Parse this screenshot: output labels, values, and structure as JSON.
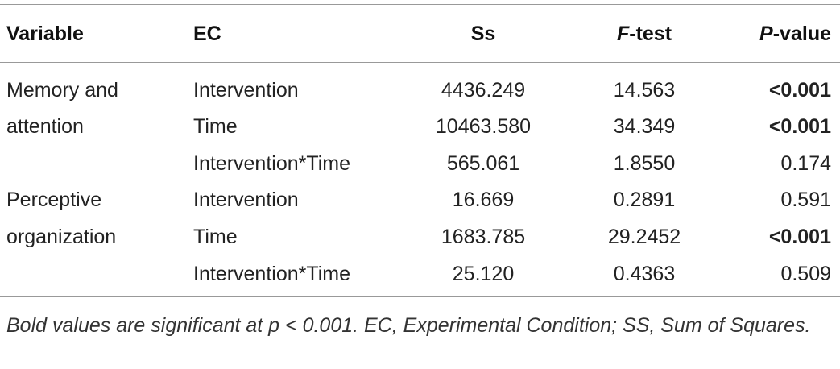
{
  "table": {
    "headers": [
      {
        "text": "Variable"
      },
      {
        "text": "EC"
      },
      {
        "text": "Ss"
      },
      {
        "italic": "F",
        "text": "-test"
      },
      {
        "italic": "P",
        "text": "-value"
      }
    ],
    "rows": [
      {
        "cells": [
          "Memory and",
          "Intervention",
          "4436.249",
          "14.563",
          "<0.001"
        ],
        "bold": true
      },
      {
        "cells": [
          "attention",
          "Time",
          "10463.580",
          "34.349",
          "<0.001"
        ],
        "bold": true
      },
      {
        "cells": [
          null,
          "Intervention*Time",
          "565.061",
          "1.8550",
          "0.174"
        ],
        "bold": false
      },
      {
        "cells": [
          "Perceptive",
          "Intervention",
          "16.669",
          "0.2891",
          "0.591"
        ],
        "bold": false
      },
      {
        "cells": [
          "organization",
          "Time",
          "1683.785",
          "29.2452",
          "<0.001"
        ],
        "bold": true
      },
      {
        "cells": [
          null,
          "Intervention*Time",
          "25.120",
          "0.4363",
          "0.509"
        ],
        "bold": false
      }
    ],
    "footnote": "Bold values are significant at p < 0.001. EC, Experimental Condition; SS, Sum of Squares."
  }
}
